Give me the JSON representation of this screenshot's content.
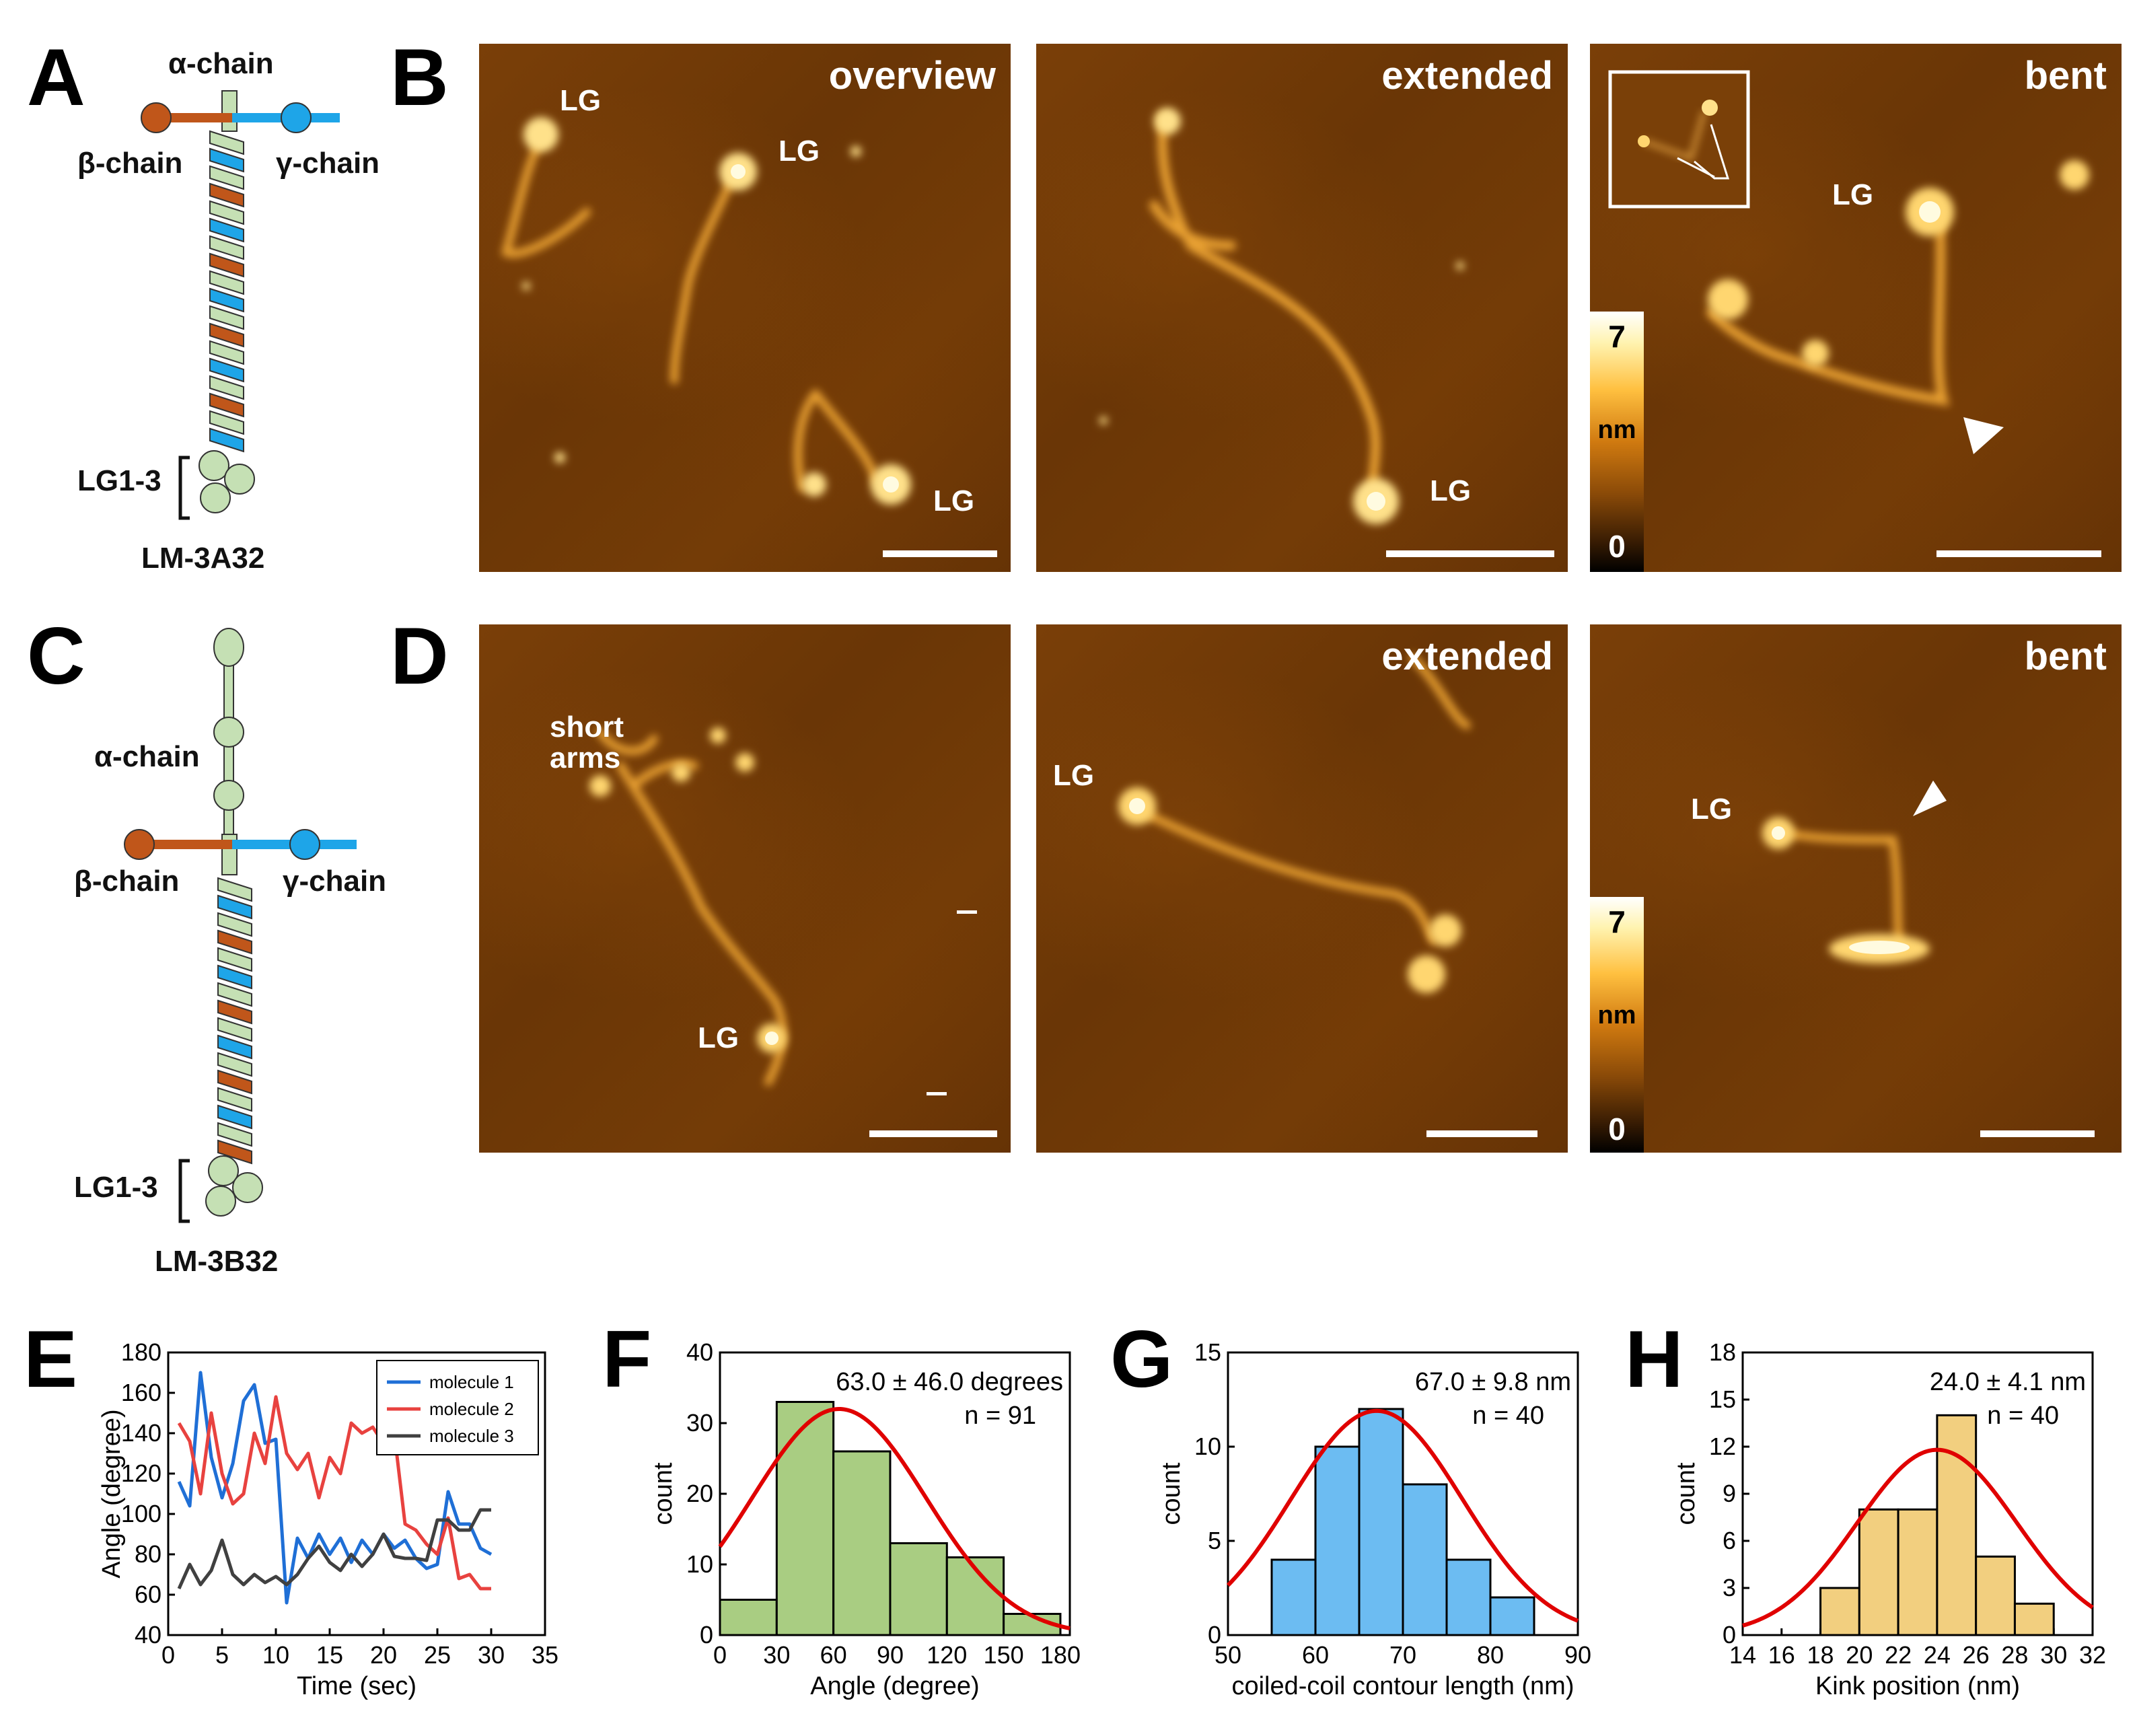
{
  "panels": {
    "A": "A",
    "B": "B",
    "C": "C",
    "D": "D",
    "E": "E",
    "F": "F",
    "G": "G",
    "H": "H"
  },
  "schematic_A": {
    "alpha": "α-chain",
    "beta": "β-chain",
    "gamma": "γ-chain",
    "lg": "LG1-3",
    "name": "LM-3A32"
  },
  "schematic_C": {
    "alpha": "α-chain",
    "beta": "β-chain",
    "gamma": "γ-chain",
    "lg": "LG1-3",
    "name": "LM-3B32"
  },
  "afm_B": {
    "overview": {
      "title": "overview",
      "labels": [
        "LG",
        "LG",
        "LG"
      ]
    },
    "extended": {
      "title": "extended",
      "labels": [
        "LG"
      ]
    },
    "bent": {
      "title": "bent",
      "labels": [
        "LG"
      ]
    },
    "colorbar": {
      "max": "7",
      "unit": "nm",
      "min": "0"
    }
  },
  "afm_D": {
    "overview": {
      "labels": [
        "short arms",
        "LG"
      ]
    },
    "extended": {
      "title": "extended",
      "labels": [
        "LG"
      ]
    },
    "bent": {
      "title": "bent",
      "labels": [
        "LG"
      ]
    },
    "colorbar": {
      "max": "7",
      "unit": "nm",
      "min": "0"
    }
  },
  "colors": {
    "beta": "#c0561a",
    "gamma": "#1ea5e8",
    "alpha": "#c5e0b4",
    "m1": "#1f6fd6",
    "m2": "#e8423f",
    "m3": "#404040",
    "greenBar": "#a9cd82",
    "blueBar": "#6cbcf2",
    "yellowBar": "#f2cf7f",
    "fit": "#e00000"
  },
  "chart_data": [
    {
      "panel": "E",
      "type": "line",
      "xlabel": "Time (sec)",
      "ylabel": "Angle (degree)",
      "xlim": [
        0,
        35
      ],
      "ylim": [
        40,
        180
      ],
      "xticks": [
        0,
        5,
        10,
        15,
        20,
        25,
        30,
        35
      ],
      "yticks": [
        40,
        60,
        80,
        100,
        120,
        140,
        160,
        180
      ],
      "x": [
        1,
        2,
        3,
        4,
        5,
        6,
        7,
        8,
        9,
        10,
        11,
        12,
        13,
        14,
        15,
        16,
        17,
        18,
        19,
        20,
        21,
        22,
        23,
        24,
        25,
        26,
        27,
        28,
        29,
        30
      ],
      "series": [
        {
          "name": "molecule 1",
          "values": [
            116,
            104,
            170,
            128,
            108,
            125,
            156,
            164,
            135,
            137,
            56,
            88,
            78,
            90,
            80,
            88,
            76,
            87,
            80,
            90,
            83,
            87,
            78,
            73,
            75,
            111,
            95,
            95,
            83,
            80
          ]
        },
        {
          "name": "molecule 2",
          "values": [
            145,
            136,
            110,
            150,
            120,
            105,
            110,
            140,
            125,
            158,
            130,
            122,
            130,
            108,
            128,
            120,
            145,
            140,
            143,
            135,
            140,
            95,
            92,
            85,
            80,
            98,
            68,
            70,
            63,
            63
          ]
        },
        {
          "name": "molecule 3",
          "values": [
            63,
            75,
            65,
            72,
            87,
            70,
            65,
            70,
            66,
            69,
            65,
            70,
            78,
            84,
            76,
            72,
            80,
            74,
            80,
            90,
            79,
            78,
            78,
            77,
            97,
            97,
            92,
            92,
            102,
            102
          ]
        }
      ]
    },
    {
      "panel": "F",
      "type": "bar",
      "xlabel": "Angle (degree)",
      "ylabel": "count",
      "bin_edges": [
        0,
        30,
        60,
        90,
        120,
        150,
        180
      ],
      "values": [
        5,
        33,
        26,
        13,
        11,
        3
      ],
      "xticks": [
        0,
        30,
        60,
        90,
        120,
        150,
        180
      ],
      "yticks": [
        0,
        10,
        20,
        30,
        40
      ],
      "xlim": [
        0,
        185
      ],
      "ylim": [
        0,
        40
      ],
      "fit": {
        "mean": 63.0,
        "sd": 46.0,
        "peak": 32
      },
      "annotation": "63.0 ± 46.0 degrees",
      "n": "n = 91"
    },
    {
      "panel": "G",
      "type": "bar",
      "xlabel": "coiled-coil contour length (nm)",
      "ylabel": "count",
      "bin_edges": [
        55,
        60,
        65,
        70,
        75,
        80,
        85
      ],
      "values": [
        4,
        10,
        12,
        8,
        4,
        2
      ],
      "xticks": [
        50,
        60,
        70,
        80,
        90
      ],
      "yticks": [
        0,
        5,
        10,
        15
      ],
      "xlim": [
        50,
        90
      ],
      "ylim": [
        0,
        15
      ],
      "fit": {
        "mean": 67.0,
        "sd": 9.8,
        "peak": 11.9
      },
      "annotation": "67.0 ± 9.8 nm",
      "n": "n = 40"
    },
    {
      "panel": "H",
      "type": "bar",
      "xlabel": "Kink position (nm)",
      "ylabel": "count",
      "bin_edges": [
        18,
        20,
        22,
        24,
        26,
        28,
        30
      ],
      "values": [
        3,
        8,
        8,
        14,
        5,
        2
      ],
      "xticks": [
        14,
        16,
        18,
        20,
        22,
        24,
        26,
        28,
        30,
        32
      ],
      "yticks": [
        0,
        3,
        6,
        9,
        12,
        15,
        18
      ],
      "xlim": [
        14,
        32
      ],
      "ylim": [
        0,
        18
      ],
      "fit": {
        "mean": 24.0,
        "sd": 4.1,
        "peak": 11.8
      },
      "annotation": "24.0 ± 4.1 nm",
      "n": "n = 40"
    }
  ]
}
